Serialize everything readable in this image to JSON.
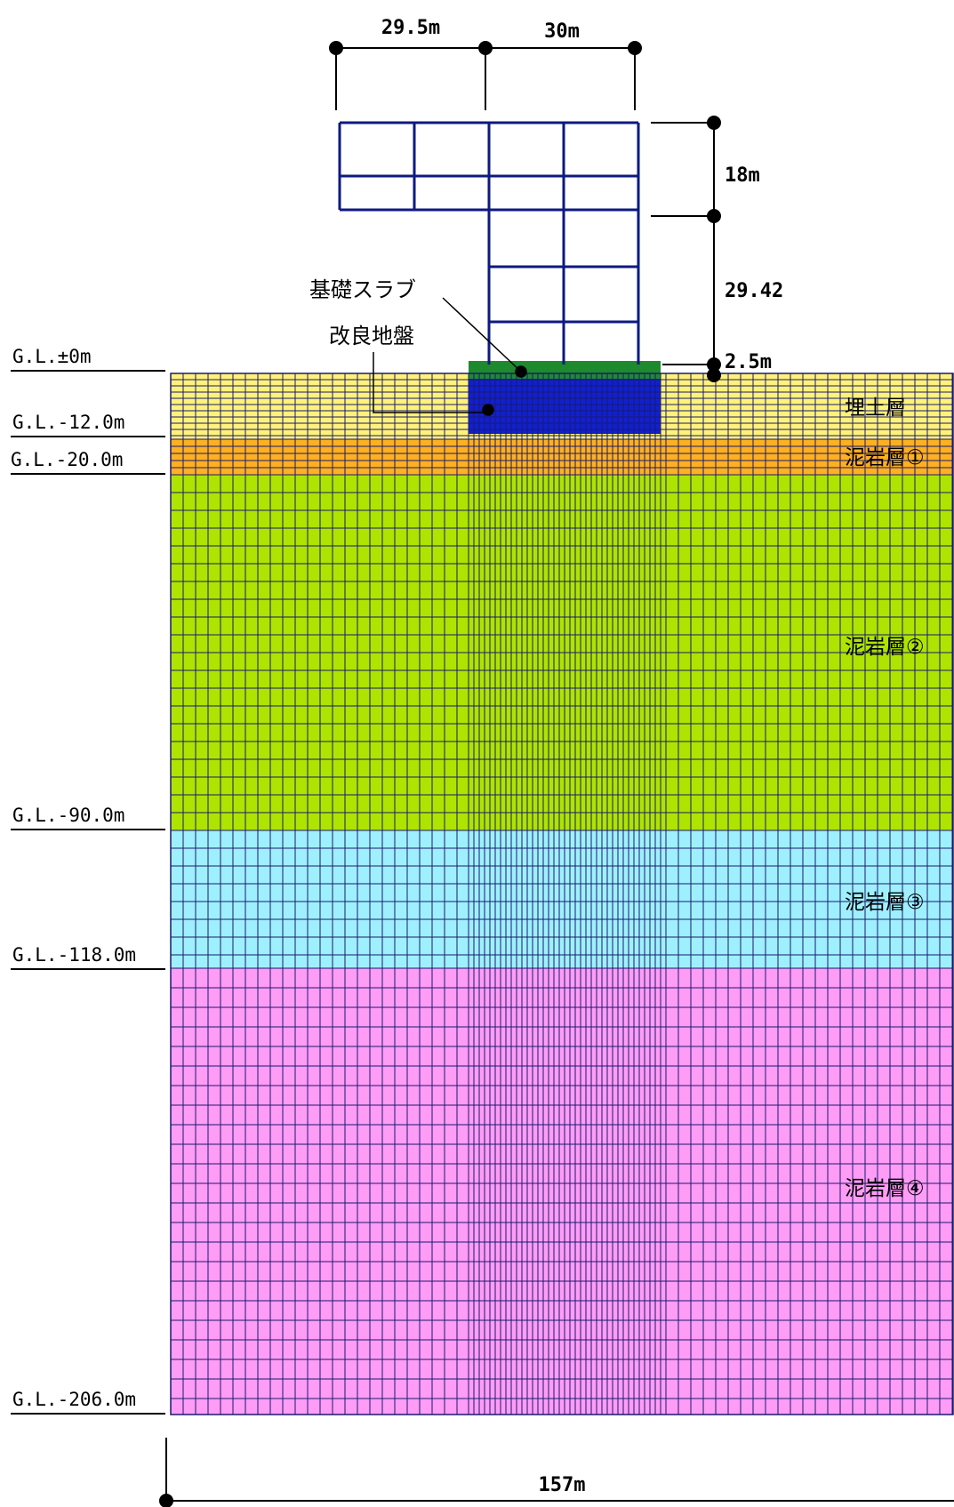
{
  "dimensions": {
    "left_width": "29.5m",
    "right_width": "30m",
    "upper_height": "18m",
    "lower_height": "29.42",
    "slab_thickness": "2.5m",
    "model_width": "157m"
  },
  "callouts": {
    "foundation_slab": "基礎スラブ",
    "improved_ground": "改良地盤"
  },
  "ground_levels": [
    "G.L.±0m",
    "G.L.-12.0m",
    "G.L.-20.0m",
    "G.L.-90.0m",
    "G.L.-118.0m",
    "G.L.-206.0m"
  ],
  "layers": [
    {
      "name": "埋土層",
      "color": "#fff27a"
    },
    {
      "name": "泥岩層①",
      "color": "#ffb020"
    },
    {
      "name": "泥岩層②",
      "color": "#aee400"
    },
    {
      "name": "泥岩層③",
      "color": "#9ff0ff"
    },
    {
      "name": "泥岩層④",
      "color": "#ff9cf5"
    }
  ],
  "colors": {
    "mesh_line": "#1a1a6e",
    "building_frame": "#0d1a80",
    "improved_ground": "#1020d0",
    "foundation_slab": "#1e8a2e"
  }
}
